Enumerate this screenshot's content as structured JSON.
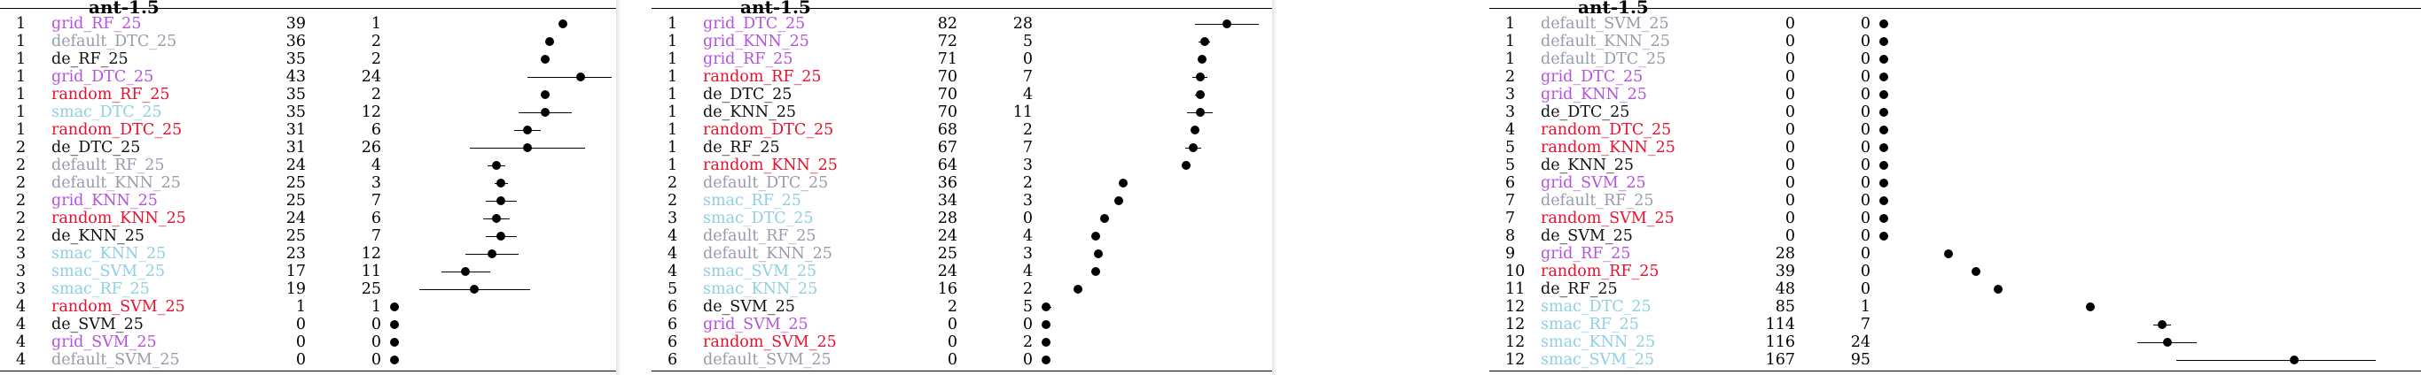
{
  "colors": {
    "grid": "#b454dc",
    "default": "#9a9aad",
    "de": "#111111",
    "random": "#e8112d",
    "smac": "#8fd0e0"
  },
  "panels": [
    {
      "title": "ant-1.5",
      "rows": [
        {
          "rank": "1",
          "name": "grid_RF_25",
          "group": "grid",
          "median": "39",
          "iqr": "1"
        },
        {
          "rank": "1",
          "name": "default_DTC_25",
          "group": "default",
          "median": "36",
          "iqr": "2"
        },
        {
          "rank": "1",
          "name": "de_RF_25",
          "group": "de",
          "median": "35",
          "iqr": "2"
        },
        {
          "rank": "1",
          "name": "grid_DTC_25",
          "group": "grid",
          "median": "43",
          "iqr": "24"
        },
        {
          "rank": "1",
          "name": "random_RF_25",
          "group": "random",
          "median": "35",
          "iqr": "2"
        },
        {
          "rank": "1",
          "name": "smac_DTC_25",
          "group": "smac",
          "median": "35",
          "iqr": "12"
        },
        {
          "rank": "1",
          "name": "random_DTC_25",
          "group": "random",
          "median": "31",
          "iqr": "6"
        },
        {
          "rank": "2",
          "name": "de_DTC_25",
          "group": "de",
          "median": "31",
          "iqr": "26"
        },
        {
          "rank": "2",
          "name": "default_RF_25",
          "group": "default",
          "median": "24",
          "iqr": "4"
        },
        {
          "rank": "2",
          "name": "default_KNN_25",
          "group": "default",
          "median": "25",
          "iqr": "3"
        },
        {
          "rank": "2",
          "name": "grid_KNN_25",
          "group": "grid",
          "median": "25",
          "iqr": "7"
        },
        {
          "rank": "2",
          "name": "random_KNN_25",
          "group": "random",
          "median": "24",
          "iqr": "6"
        },
        {
          "rank": "2",
          "name": "de_KNN_25",
          "group": "de",
          "median": "25",
          "iqr": "7"
        },
        {
          "rank": "3",
          "name": "smac_KNN_25",
          "group": "smac",
          "median": "23",
          "iqr": "12"
        },
        {
          "rank": "3",
          "name": "smac_SVM_25",
          "group": "smac",
          "median": "17",
          "iqr": "11"
        },
        {
          "rank": "3",
          "name": "smac_RF_25",
          "group": "smac",
          "median": "19",
          "iqr": "25"
        },
        {
          "rank": "4",
          "name": "random_SVM_25",
          "group": "random",
          "median": "1",
          "iqr": "1"
        },
        {
          "rank": "4",
          "name": "de_SVM_25",
          "group": "de",
          "median": "0",
          "iqr": "0"
        },
        {
          "rank": "4",
          "name": "grid_SVM_25",
          "group": "grid",
          "median": "0",
          "iqr": "0"
        },
        {
          "rank": "4",
          "name": "default_SVM_25",
          "group": "default",
          "median": "0",
          "iqr": "0"
        }
      ]
    },
    {
      "title": "ant-1.5",
      "rows": [
        {
          "rank": "1",
          "name": "grid_DTC_25",
          "group": "grid",
          "median": "82",
          "iqr": "28"
        },
        {
          "rank": "1",
          "name": "grid_KNN_25",
          "group": "grid",
          "median": "72",
          "iqr": "5"
        },
        {
          "rank": "1",
          "name": "grid_RF_25",
          "group": "grid",
          "median": "71",
          "iqr": "0"
        },
        {
          "rank": "1",
          "name": "random_RF_25",
          "group": "random",
          "median": "70",
          "iqr": "7"
        },
        {
          "rank": "1",
          "name": "de_DTC_25",
          "group": "de",
          "median": "70",
          "iqr": "4"
        },
        {
          "rank": "1",
          "name": "de_KNN_25",
          "group": "de",
          "median": "70",
          "iqr": "11"
        },
        {
          "rank": "1",
          "name": "random_DTC_25",
          "group": "random",
          "median": "68",
          "iqr": "2"
        },
        {
          "rank": "1",
          "name": "de_RF_25",
          "group": "de",
          "median": "67",
          "iqr": "7"
        },
        {
          "rank": "1",
          "name": "random_KNN_25",
          "group": "random",
          "median": "64",
          "iqr": "3"
        },
        {
          "rank": "2",
          "name": "default_DTC_25",
          "group": "default",
          "median": "36",
          "iqr": "2"
        },
        {
          "rank": "2",
          "name": "smac_RF_25",
          "group": "smac",
          "median": "34",
          "iqr": "3"
        },
        {
          "rank": "3",
          "name": "smac_DTC_25",
          "group": "smac",
          "median": "28",
          "iqr": "0"
        },
        {
          "rank": "4",
          "name": "default_RF_25",
          "group": "default",
          "median": "24",
          "iqr": "4"
        },
        {
          "rank": "4",
          "name": "default_KNN_25",
          "group": "default",
          "median": "25",
          "iqr": "3"
        },
        {
          "rank": "4",
          "name": "smac_SVM_25",
          "group": "smac",
          "median": "24",
          "iqr": "4"
        },
        {
          "rank": "5",
          "name": "smac_KNN_25",
          "group": "smac",
          "median": "16",
          "iqr": "2"
        },
        {
          "rank": "6",
          "name": "de_SVM_25",
          "group": "de",
          "median": "2",
          "iqr": "5"
        },
        {
          "rank": "6",
          "name": "grid_SVM_25",
          "group": "grid",
          "median": "0",
          "iqr": "0"
        },
        {
          "rank": "6",
          "name": "random_SVM_25",
          "group": "random",
          "median": "0",
          "iqr": "2"
        },
        {
          "rank": "6",
          "name": "default_SVM_25",
          "group": "default",
          "median": "0",
          "iqr": "0"
        }
      ]
    },
    {
      "title": "ant-1.5",
      "rows": [
        {
          "rank": "1",
          "name": "default_SVM_25",
          "group": "default",
          "median": "0",
          "iqr": "0"
        },
        {
          "rank": "1",
          "name": "default_KNN_25",
          "group": "default",
          "median": "0",
          "iqr": "0"
        },
        {
          "rank": "1",
          "name": "default_DTC_25",
          "group": "default",
          "median": "0",
          "iqr": "0"
        },
        {
          "rank": "2",
          "name": "grid_DTC_25",
          "group": "grid",
          "median": "0",
          "iqr": "0"
        },
        {
          "rank": "3",
          "name": "grid_KNN_25",
          "group": "grid",
          "median": "0",
          "iqr": "0"
        },
        {
          "rank": "3",
          "name": "de_DTC_25",
          "group": "de",
          "median": "0",
          "iqr": "0"
        },
        {
          "rank": "4",
          "name": "random_DTC_25",
          "group": "random",
          "median": "0",
          "iqr": "0"
        },
        {
          "rank": "5",
          "name": "random_KNN_25",
          "group": "random",
          "median": "0",
          "iqr": "0"
        },
        {
          "rank": "5",
          "name": "de_KNN_25",
          "group": "de",
          "median": "0",
          "iqr": "0"
        },
        {
          "rank": "6",
          "name": "grid_SVM_25",
          "group": "grid",
          "median": "0",
          "iqr": "0"
        },
        {
          "rank": "7",
          "name": "default_RF_25",
          "group": "default",
          "median": "0",
          "iqr": "0"
        },
        {
          "rank": "7",
          "name": "random_SVM_25",
          "group": "random",
          "median": "0",
          "iqr": "0"
        },
        {
          "rank": "8",
          "name": "de_SVM_25",
          "group": "de",
          "median": "0",
          "iqr": "0"
        },
        {
          "rank": "9",
          "name": "grid_RF_25",
          "group": "grid",
          "median": "28",
          "iqr": "0"
        },
        {
          "rank": "10",
          "name": "random_RF_25",
          "group": "random",
          "median": "39",
          "iqr": "0"
        },
        {
          "rank": "11",
          "name": "de_RF_25",
          "group": "de",
          "median": "48",
          "iqr": "0"
        },
        {
          "rank": "12",
          "name": "smac_DTC_25",
          "group": "smac",
          "median": "85",
          "iqr": "1"
        },
        {
          "rank": "12",
          "name": "smac_RF_25",
          "group": "smac",
          "median": "114",
          "iqr": "7"
        },
        {
          "rank": "12",
          "name": "smac_KNN_25",
          "group": "smac",
          "median": "116",
          "iqr": "24"
        },
        {
          "rank": "12",
          "name": "smac_SVM_25",
          "group": "smac",
          "median": "167",
          "iqr": "95"
        }
      ]
    }
  ]
}
